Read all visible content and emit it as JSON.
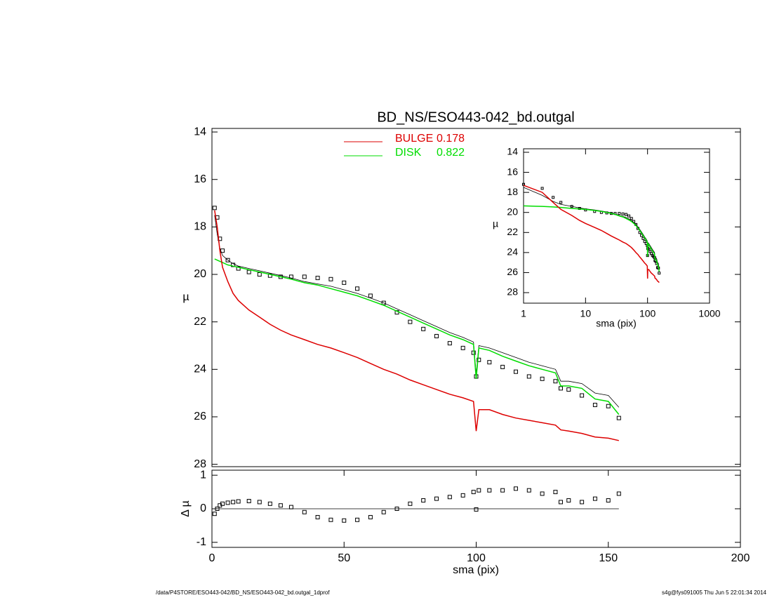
{
  "chart_data": [
    {
      "type": "line",
      "title": "BD_NS/ESO443-042_bd.outgal",
      "ylabel": "µ",
      "x": [
        1,
        2,
        3,
        4,
        6,
        8,
        10,
        14,
        18,
        22,
        26,
        30,
        35,
        40,
        45,
        50,
        55,
        60,
        65,
        70,
        75,
        80,
        85,
        90,
        95,
        99,
        100,
        101,
        105,
        110,
        115,
        120,
        125,
        130,
        132,
        135,
        140,
        145,
        150,
        154
      ],
      "series": [
        {
          "color": "#000000",
          "marker": "square",
          "values": [
            17.2,
            17.6,
            18.5,
            19.0,
            19.4,
            19.6,
            19.75,
            19.9,
            20.0,
            20.05,
            20.1,
            20.1,
            20.1,
            20.15,
            20.2,
            20.35,
            20.6,
            20.9,
            21.2,
            21.6,
            22.0,
            22.3,
            22.6,
            22.9,
            23.1,
            23.3,
            24.3,
            23.6,
            23.7,
            23.9,
            24.1,
            24.3,
            24.4,
            24.5,
            24.8,
            24.85,
            25.1,
            25.5,
            25.55,
            26.05
          ]
        },
        {
          "color": "#000000",
          "values": [
            17.5,
            18.3,
            18.9,
            19.2,
            19.4,
            19.55,
            19.65,
            19.75,
            19.85,
            19.95,
            20.05,
            20.15,
            20.3,
            20.4,
            20.5,
            20.65,
            20.8,
            21.0,
            21.2,
            21.45,
            21.7,
            21.95,
            22.2,
            22.45,
            22.65,
            22.85,
            24.2,
            23.0,
            23.1,
            23.3,
            23.5,
            23.7,
            23.85,
            24.0,
            24.5,
            24.5,
            24.6,
            25.0,
            25.1,
            25.6
          ]
        },
        {
          "name": "DISK",
          "fraction": 0.822,
          "color": "#00dd00",
          "values": [
            19.35,
            19.4,
            19.45,
            19.5,
            19.6,
            19.65,
            19.7,
            19.8,
            19.9,
            20.0,
            20.1,
            20.2,
            20.35,
            20.45,
            20.6,
            20.75,
            20.9,
            21.1,
            21.3,
            21.55,
            21.8,
            22.05,
            22.3,
            22.55,
            22.75,
            22.95,
            24.4,
            23.1,
            23.2,
            23.45,
            23.65,
            23.85,
            24.0,
            24.15,
            24.7,
            24.7,
            24.8,
            25.25,
            25.35,
            25.9
          ]
        },
        {
          "name": "BULGE",
          "fraction": 0.178,
          "color": "#dd0000",
          "values": [
            17.3,
            18.0,
            19.0,
            19.7,
            20.3,
            20.8,
            21.1,
            21.5,
            21.8,
            22.1,
            22.35,
            22.55,
            22.75,
            22.95,
            23.1,
            23.3,
            23.5,
            23.75,
            24.0,
            24.2,
            24.45,
            24.65,
            24.85,
            25.05,
            25.2,
            25.35,
            26.6,
            25.7,
            25.7,
            25.9,
            26.05,
            26.15,
            26.25,
            26.35,
            26.55,
            26.6,
            26.7,
            26.85,
            26.9,
            27.0
          ]
        }
      ],
      "xlim": [
        0,
        200
      ],
      "ylim": [
        28.1,
        13.85
      ],
      "yticks": [
        14,
        16,
        18,
        20,
        22,
        24,
        26,
        28
      ]
    },
    {
      "type": "scatter",
      "xlabel": "sma (pix)",
      "ylabel": "Δ µ",
      "x": [
        1,
        2,
        3,
        4,
        6,
        8,
        10,
        14,
        18,
        22,
        26,
        30,
        35,
        40,
        45,
        50,
        55,
        60,
        65,
        70,
        75,
        80,
        85,
        90,
        95,
        99,
        100,
        101,
        105,
        110,
        115,
        120,
        125,
        130,
        132,
        135,
        140,
        145,
        150,
        154
      ],
      "values": [
        -0.15,
        0.0,
        0.1,
        0.15,
        0.18,
        0.2,
        0.22,
        0.23,
        0.2,
        0.15,
        0.1,
        0.05,
        -0.1,
        -0.25,
        -0.33,
        -0.35,
        -0.33,
        -0.25,
        -0.1,
        0.0,
        0.15,
        0.25,
        0.3,
        0.35,
        0.4,
        0.5,
        -0.02,
        0.55,
        0.55,
        0.55,
        0.6,
        0.55,
        0.45,
        0.5,
        0.2,
        0.25,
        0.2,
        0.3,
        0.25,
        0.45
      ],
      "color": "#000000",
      "xlim": [
        0,
        200
      ],
      "xticks": [
        0,
        50,
        100,
        150,
        200
      ],
      "ylim": [
        -1.15,
        1.15
      ],
      "yticks": [
        1,
        0,
        -1
      ]
    },
    {
      "type": "inset",
      "xlabel": "sma (pix)",
      "ylabel": "µ",
      "log_x": true,
      "xlim": [
        1,
        1000
      ],
      "xticks": [
        1,
        10,
        100,
        1000
      ],
      "ylim": [
        29.05,
        13.65
      ],
      "yticks": [
        14,
        16,
        18,
        20,
        22,
        24,
        26,
        28
      ]
    }
  ],
  "footer": {
    "left": "/data/P4STORE/ESO443-042/BD_NS/ESO443-042_bd.outgal_1dprof",
    "right": "s4g@fys091005  Thu Jun  5 22:01:34 2014"
  }
}
